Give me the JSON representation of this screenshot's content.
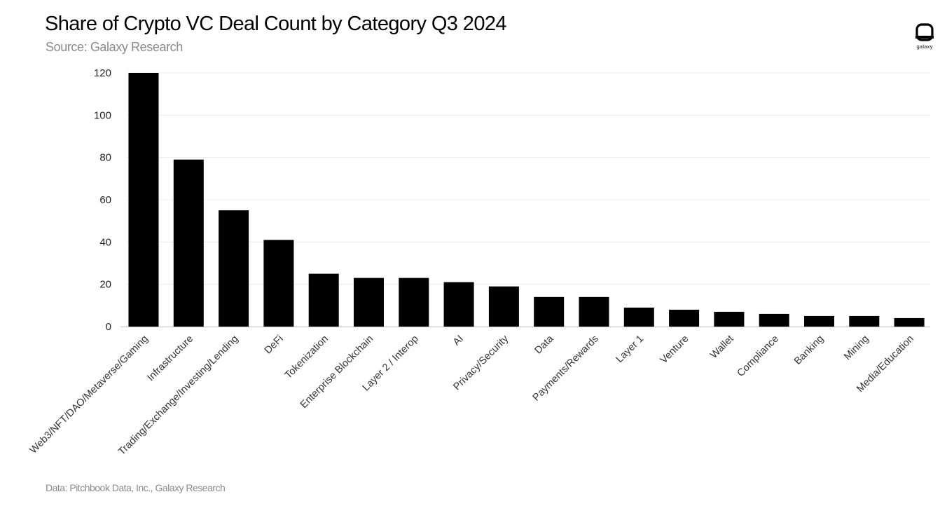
{
  "header": {
    "title": "Share of Crypto VC Deal Count by Category Q3 2024",
    "subtitle": "Source: Galaxy Research"
  },
  "footer": {
    "note": "Data: Pitchbook Data, Inc., Galaxy Research"
  },
  "logo": {
    "text": "galaxy",
    "icon": "galaxy-logo-icon"
  },
  "colors": {
    "bar": "#000000",
    "grid": "#ececec",
    "axis": "#bdbdbd"
  },
  "chart_data": {
    "type": "bar",
    "title": "Share of Crypto VC Deal Count by Category Q3 2024",
    "xlabel": "",
    "ylabel": "",
    "ylim": [
      0,
      120
    ],
    "yticks": [
      0,
      20,
      40,
      60,
      80,
      100,
      120
    ],
    "grid": true,
    "legend": "none",
    "categories": [
      "Web3/NFT/DAO/Metaverse/Gaming",
      "Infrastructure",
      "Trading/Exchange/Investing/Lending",
      "DeFi",
      "Tokenization",
      "Enterprise Blockchain",
      "Layer 2 / Interop",
      "AI",
      "Privacy/Security",
      "Data",
      "Payments/Rewards",
      "Layer 1",
      "Venture",
      "Wallet",
      "Compliance",
      "Banking",
      "Mining",
      "Media/Education"
    ],
    "values": [
      120,
      79,
      55,
      41,
      25,
      23,
      23,
      21,
      19,
      14,
      14,
      9,
      8,
      7,
      6,
      5,
      5,
      4
    ]
  }
}
